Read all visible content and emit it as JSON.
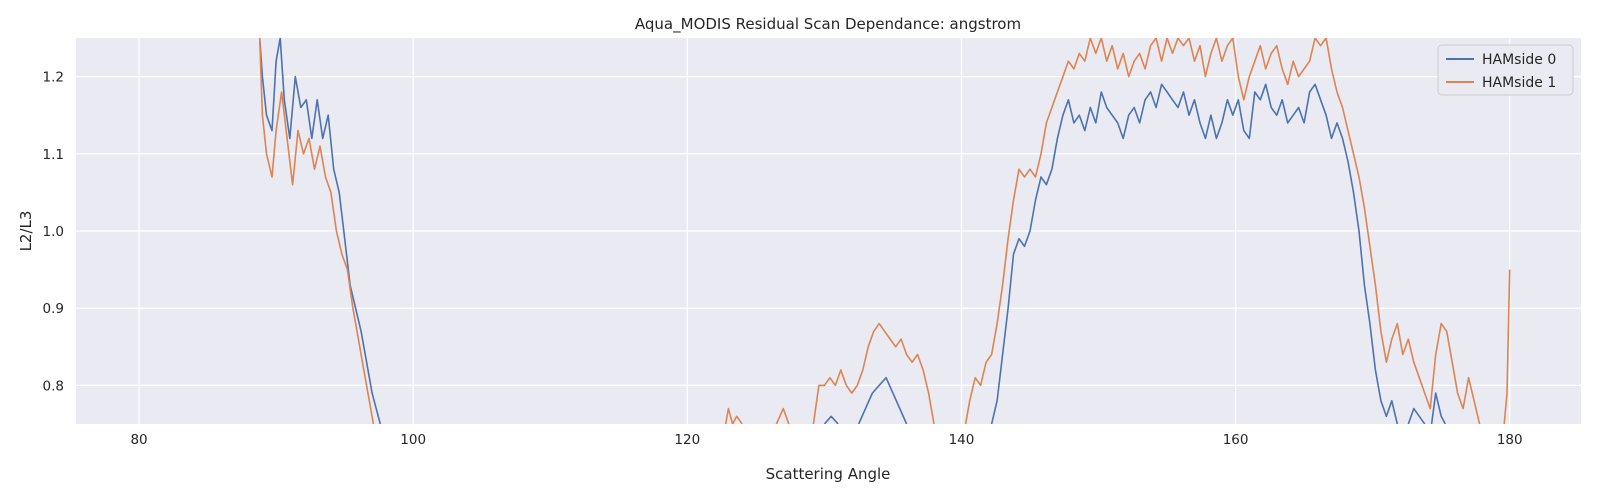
{
  "chart_data": {
    "type": "line",
    "title": "Aqua_MODIS Residual Scan Dependance: angstrom",
    "xlabel": "Scattering Angle",
    "ylabel": "L2/L3",
    "xlim": [
      75.4,
      185.2
    ],
    "ylim": [
      0.75,
      1.25
    ],
    "xticks": [
      80,
      100,
      120,
      140,
      160,
      180
    ],
    "yticks": [
      0.8,
      0.9,
      1.0,
      1.1,
      1.2
    ],
    "grid": true,
    "legend_position": "top-right",
    "background": "#eaeaf2",
    "series": [
      {
        "name": "HAMside 0",
        "color": "#4c72b0",
        "points": [
          [
            88.8,
            1.25
          ],
          [
            89.0,
            1.2
          ],
          [
            89.3,
            1.15
          ],
          [
            89.7,
            1.13
          ],
          [
            90.0,
            1.22
          ],
          [
            90.3,
            1.25
          ],
          [
            90.6,
            1.17
          ],
          [
            91.0,
            1.12
          ],
          [
            91.4,
            1.2
          ],
          [
            91.8,
            1.16
          ],
          [
            92.2,
            1.17
          ],
          [
            92.6,
            1.12
          ],
          [
            93.0,
            1.17
          ],
          [
            93.4,
            1.12
          ],
          [
            93.8,
            1.15
          ],
          [
            94.2,
            1.08
          ],
          [
            94.6,
            1.05
          ],
          [
            95.0,
            0.99
          ],
          [
            95.4,
            0.93
          ],
          [
            95.8,
            0.9
          ],
          [
            96.2,
            0.87
          ],
          [
            96.6,
            0.83
          ],
          [
            97.0,
            0.79
          ],
          [
            97.3,
            0.77
          ],
          [
            97.6,
            0.75
          ],
          [
            null,
            null
          ],
          [
            130.0,
            0.75
          ],
          [
            130.5,
            0.76
          ],
          [
            131.0,
            0.75
          ],
          [
            null,
            null
          ],
          [
            132.5,
            0.75
          ],
          [
            133.0,
            0.77
          ],
          [
            133.5,
            0.79
          ],
          [
            134.0,
            0.8
          ],
          [
            134.5,
            0.81
          ],
          [
            135.0,
            0.79
          ],
          [
            135.5,
            0.77
          ],
          [
            136.0,
            0.75
          ],
          [
            null,
            null
          ],
          [
            142.2,
            0.75
          ],
          [
            142.6,
            0.78
          ],
          [
            143.0,
            0.84
          ],
          [
            143.4,
            0.9
          ],
          [
            143.8,
            0.97
          ],
          [
            144.2,
            0.99
          ],
          [
            144.6,
            0.98
          ],
          [
            145.0,
            1.0
          ],
          [
            145.4,
            1.04
          ],
          [
            145.8,
            1.07
          ],
          [
            146.2,
            1.06
          ],
          [
            146.6,
            1.08
          ],
          [
            147.0,
            1.12
          ],
          [
            147.4,
            1.15
          ],
          [
            147.8,
            1.17
          ],
          [
            148.2,
            1.14
          ],
          [
            148.6,
            1.15
          ],
          [
            149.0,
            1.13
          ],
          [
            149.4,
            1.16
          ],
          [
            149.8,
            1.14
          ],
          [
            150.2,
            1.18
          ],
          [
            150.6,
            1.16
          ],
          [
            151.0,
            1.15
          ],
          [
            151.4,
            1.14
          ],
          [
            151.8,
            1.12
          ],
          [
            152.2,
            1.15
          ],
          [
            152.6,
            1.16
          ],
          [
            153.0,
            1.14
          ],
          [
            153.4,
            1.17
          ],
          [
            153.8,
            1.18
          ],
          [
            154.2,
            1.16
          ],
          [
            154.6,
            1.19
          ],
          [
            155.0,
            1.18
          ],
          [
            155.4,
            1.17
          ],
          [
            155.8,
            1.16
          ],
          [
            156.2,
            1.18
          ],
          [
            156.6,
            1.15
          ],
          [
            157.0,
            1.17
          ],
          [
            157.4,
            1.14
          ],
          [
            157.8,
            1.12
          ],
          [
            158.2,
            1.15
          ],
          [
            158.6,
            1.12
          ],
          [
            159.0,
            1.14
          ],
          [
            159.4,
            1.17
          ],
          [
            159.8,
            1.15
          ],
          [
            160.2,
            1.17
          ],
          [
            160.6,
            1.13
          ],
          [
            161.0,
            1.12
          ],
          [
            161.4,
            1.18
          ],
          [
            161.8,
            1.17
          ],
          [
            162.2,
            1.19
          ],
          [
            162.6,
            1.16
          ],
          [
            163.0,
            1.15
          ],
          [
            163.4,
            1.17
          ],
          [
            163.8,
            1.14
          ],
          [
            164.2,
            1.15
          ],
          [
            164.6,
            1.16
          ],
          [
            165.0,
            1.14
          ],
          [
            165.4,
            1.18
          ],
          [
            165.8,
            1.19
          ],
          [
            166.2,
            1.17
          ],
          [
            166.6,
            1.15
          ],
          [
            167.0,
            1.12
          ],
          [
            167.4,
            1.14
          ],
          [
            167.8,
            1.12
          ],
          [
            168.2,
            1.09
          ],
          [
            168.6,
            1.05
          ],
          [
            169.0,
            1.0
          ],
          [
            169.4,
            0.93
          ],
          [
            169.8,
            0.88
          ],
          [
            170.2,
            0.82
          ],
          [
            170.6,
            0.78
          ],
          [
            171.0,
            0.76
          ],
          [
            171.4,
            0.78
          ],
          [
            171.8,
            0.75
          ],
          [
            null,
            null
          ],
          [
            172.6,
            0.75
          ],
          [
            173.0,
            0.77
          ],
          [
            173.4,
            0.76
          ],
          [
            173.8,
            0.75
          ],
          [
            null,
            null
          ],
          [
            174.3,
            0.75
          ],
          [
            174.6,
            0.79
          ],
          [
            175.0,
            0.76
          ],
          [
            175.3,
            0.75
          ]
        ]
      },
      {
        "name": "HAMside 1",
        "color": "#dd8452",
        "points": [
          [
            88.8,
            1.25
          ],
          [
            89.0,
            1.15
          ],
          [
            89.3,
            1.1
          ],
          [
            89.7,
            1.07
          ],
          [
            90.0,
            1.13
          ],
          [
            90.4,
            1.18
          ],
          [
            90.8,
            1.12
          ],
          [
            91.2,
            1.06
          ],
          [
            91.6,
            1.13
          ],
          [
            92.0,
            1.1
          ],
          [
            92.4,
            1.12
          ],
          [
            92.8,
            1.08
          ],
          [
            93.2,
            1.11
          ],
          [
            93.6,
            1.07
          ],
          [
            94.0,
            1.05
          ],
          [
            94.4,
            1.0
          ],
          [
            94.8,
            0.97
          ],
          [
            95.2,
            0.95
          ],
          [
            95.6,
            0.9
          ],
          [
            96.0,
            0.86
          ],
          [
            96.4,
            0.82
          ],
          [
            96.8,
            0.78
          ],
          [
            97.1,
            0.75
          ],
          [
            null,
            null
          ],
          [
            122.8,
            0.75
          ],
          [
            123.0,
            0.77
          ],
          [
            123.3,
            0.75
          ],
          [
            123.6,
            0.76
          ],
          [
            124.0,
            0.75
          ],
          [
            null,
            null
          ],
          [
            126.5,
            0.75
          ],
          [
            127.0,
            0.77
          ],
          [
            127.4,
            0.75
          ],
          [
            null,
            null
          ],
          [
            129.2,
            0.75
          ],
          [
            129.6,
            0.8
          ],
          [
            130.0,
            0.8
          ],
          [
            130.4,
            0.81
          ],
          [
            130.8,
            0.8
          ],
          [
            131.2,
            0.82
          ],
          [
            131.6,
            0.8
          ],
          [
            132.0,
            0.79
          ],
          [
            132.4,
            0.8
          ],
          [
            132.8,
            0.82
          ],
          [
            133.2,
            0.85
          ],
          [
            133.6,
            0.87
          ],
          [
            134.0,
            0.88
          ],
          [
            134.4,
            0.87
          ],
          [
            134.8,
            0.86
          ],
          [
            135.2,
            0.85
          ],
          [
            135.6,
            0.86
          ],
          [
            136.0,
            0.84
          ],
          [
            136.4,
            0.83
          ],
          [
            136.8,
            0.84
          ],
          [
            137.2,
            0.82
          ],
          [
            137.6,
            0.79
          ],
          [
            138.0,
            0.75
          ],
          [
            null,
            null
          ],
          [
            140.3,
            0.75
          ],
          [
            140.6,
            0.78
          ],
          [
            141.0,
            0.81
          ],
          [
            141.4,
            0.8
          ],
          [
            141.8,
            0.83
          ],
          [
            142.2,
            0.84
          ],
          [
            142.6,
            0.88
          ],
          [
            143.0,
            0.93
          ],
          [
            143.4,
            0.99
          ],
          [
            143.8,
            1.04
          ],
          [
            144.2,
            1.08
          ],
          [
            144.6,
            1.07
          ],
          [
            145.0,
            1.08
          ],
          [
            145.4,
            1.07
          ],
          [
            145.8,
            1.1
          ],
          [
            146.2,
            1.14
          ],
          [
            146.6,
            1.16
          ],
          [
            147.0,
            1.18
          ],
          [
            147.4,
            1.2
          ],
          [
            147.8,
            1.22
          ],
          [
            148.2,
            1.21
          ],
          [
            148.6,
            1.23
          ],
          [
            149.0,
            1.22
          ],
          [
            149.4,
            1.25
          ],
          [
            149.8,
            1.23
          ],
          [
            150.2,
            1.25
          ],
          [
            150.6,
            1.22
          ],
          [
            151.0,
            1.24
          ],
          [
            151.4,
            1.21
          ],
          [
            151.8,
            1.23
          ],
          [
            152.2,
            1.2
          ],
          [
            152.6,
            1.22
          ],
          [
            153.0,
            1.23
          ],
          [
            153.4,
            1.21
          ],
          [
            153.8,
            1.24
          ],
          [
            154.2,
            1.25
          ],
          [
            154.6,
            1.22
          ],
          [
            155.0,
            1.25
          ],
          [
            155.4,
            1.23
          ],
          [
            155.8,
            1.25
          ],
          [
            156.2,
            1.24
          ],
          [
            156.6,
            1.25
          ],
          [
            157.0,
            1.22
          ],
          [
            157.4,
            1.24
          ],
          [
            157.8,
            1.2
          ],
          [
            158.2,
            1.23
          ],
          [
            158.6,
            1.25
          ],
          [
            159.0,
            1.22
          ],
          [
            159.4,
            1.24
          ],
          [
            159.8,
            1.25
          ],
          [
            160.2,
            1.2
          ],
          [
            160.6,
            1.17
          ],
          [
            161.0,
            1.2
          ],
          [
            161.4,
            1.22
          ],
          [
            161.8,
            1.24
          ],
          [
            162.2,
            1.21
          ],
          [
            162.6,
            1.23
          ],
          [
            163.0,
            1.24
          ],
          [
            163.4,
            1.21
          ],
          [
            163.8,
            1.19
          ],
          [
            164.2,
            1.22
          ],
          [
            164.6,
            1.2
          ],
          [
            165.0,
            1.21
          ],
          [
            165.4,
            1.22
          ],
          [
            165.8,
            1.25
          ],
          [
            166.2,
            1.24
          ],
          [
            166.6,
            1.25
          ],
          [
            167.0,
            1.21
          ],
          [
            167.4,
            1.18
          ],
          [
            167.8,
            1.16
          ],
          [
            168.2,
            1.13
          ],
          [
            168.6,
            1.1
          ],
          [
            169.0,
            1.07
          ],
          [
            169.4,
            1.03
          ],
          [
            169.8,
            0.98
          ],
          [
            170.2,
            0.93
          ],
          [
            170.6,
            0.87
          ],
          [
            171.0,
            0.83
          ],
          [
            171.4,
            0.86
          ],
          [
            171.8,
            0.88
          ],
          [
            172.2,
            0.84
          ],
          [
            172.6,
            0.86
          ],
          [
            173.0,
            0.83
          ],
          [
            173.4,
            0.81
          ],
          [
            173.8,
            0.79
          ],
          [
            174.2,
            0.77
          ],
          [
            174.6,
            0.84
          ],
          [
            175.0,
            0.88
          ],
          [
            175.4,
            0.87
          ],
          [
            175.8,
            0.83
          ],
          [
            176.2,
            0.79
          ],
          [
            176.6,
            0.77
          ],
          [
            177.0,
            0.81
          ],
          [
            177.4,
            0.78
          ],
          [
            177.8,
            0.75
          ],
          [
            null,
            null
          ],
          [
            179.6,
            0.75
          ],
          [
            179.8,
            0.79
          ],
          [
            180.0,
            0.95
          ]
        ]
      }
    ]
  }
}
